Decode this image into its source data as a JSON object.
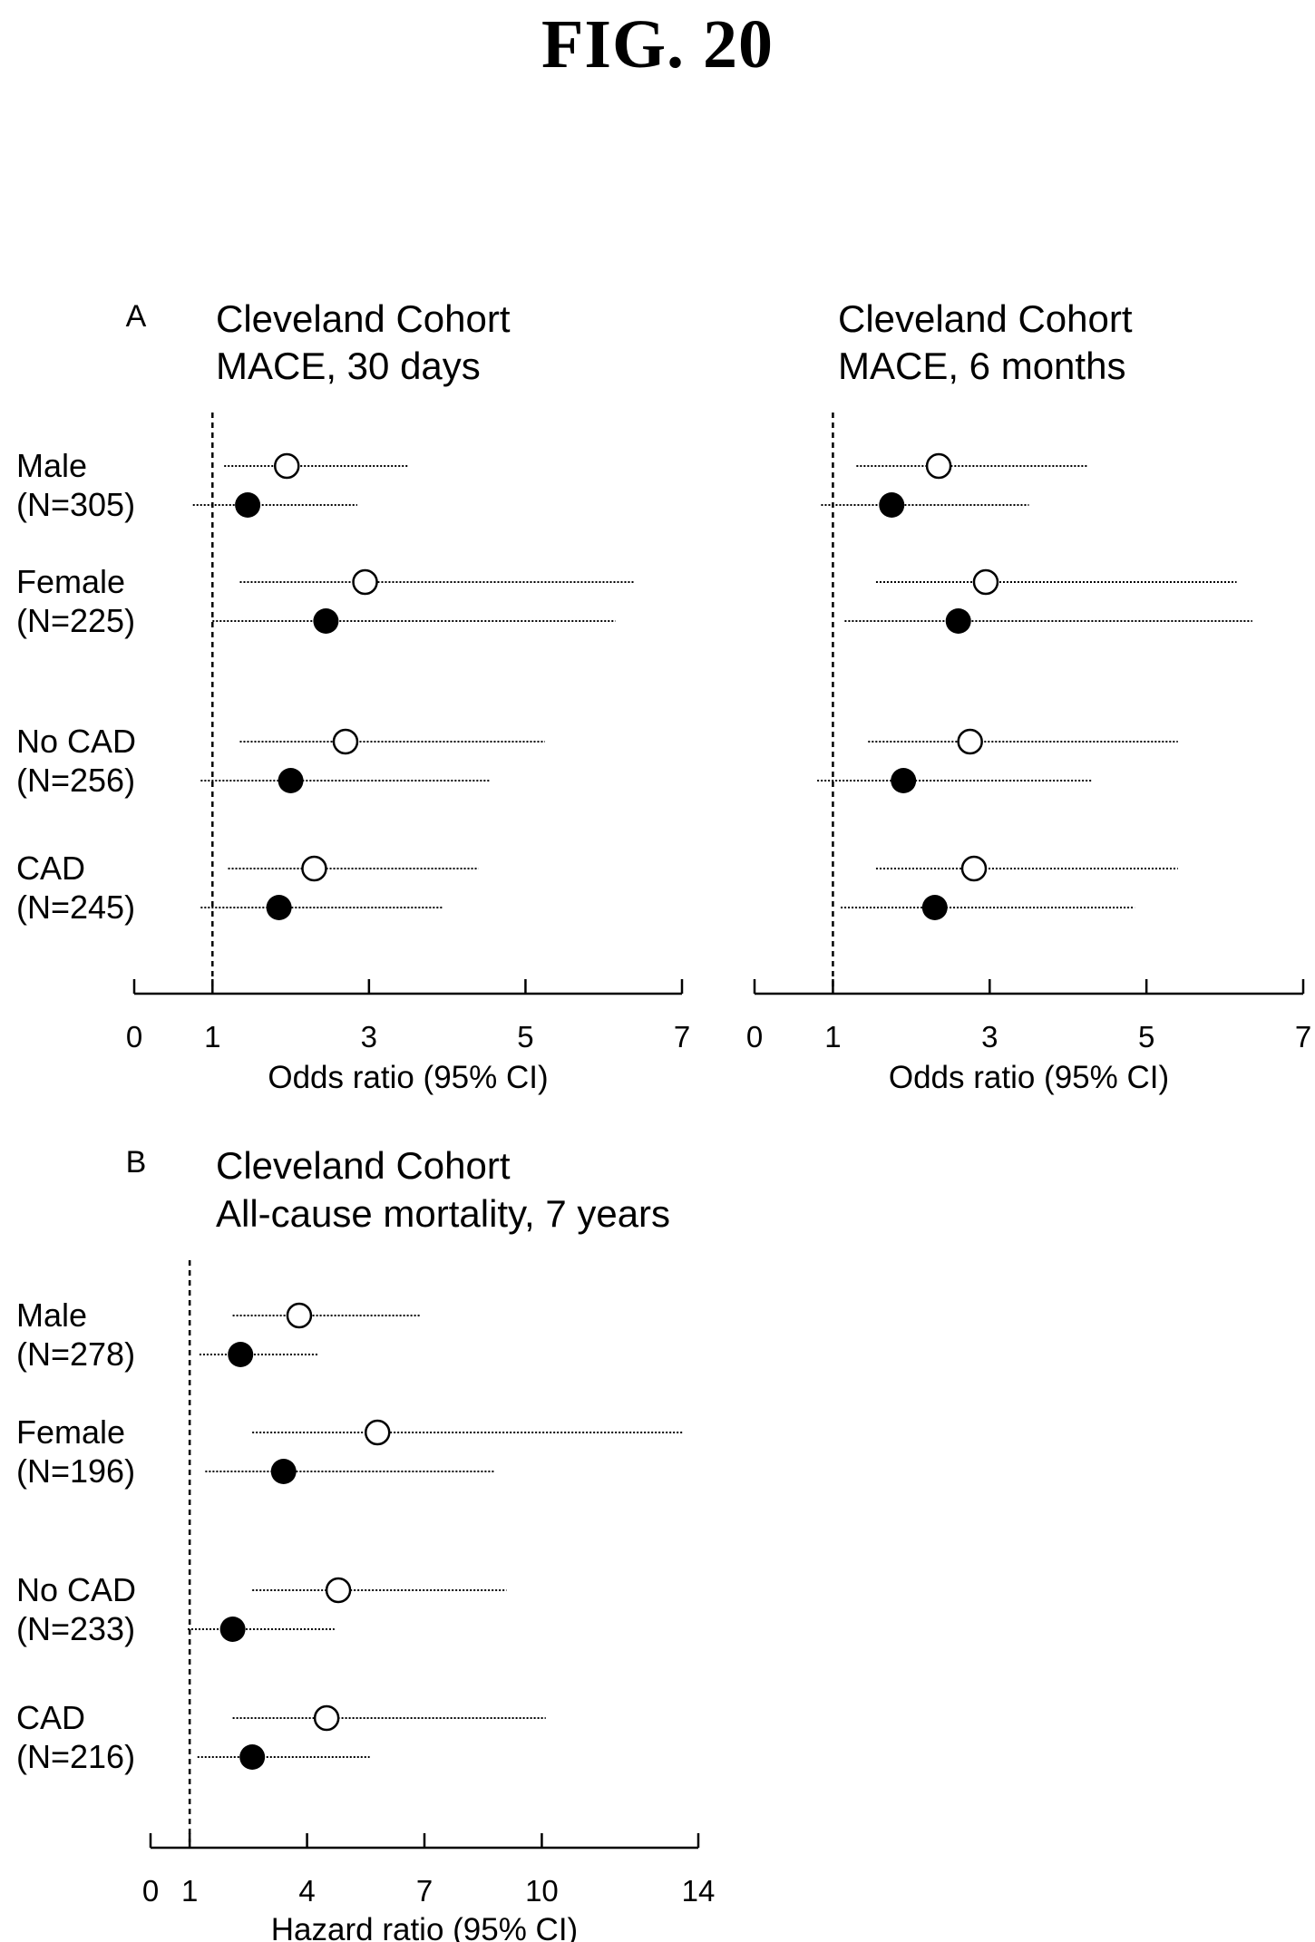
{
  "figure_title": "FIG. 20",
  "chart_data": [
    {
      "type": "forest",
      "panel_letter": "A",
      "title_lines": [
        "Cleveland Cohort",
        "MACE, 30 days"
      ],
      "xlabel": "Odds ratio (95% CI)",
      "xticks": [
        0,
        1,
        3,
        5,
        7
      ],
      "xlim": [
        0,
        7
      ],
      "reference_line": 1,
      "rows": [
        {
          "label": [
            "Male",
            "(N=305)"
          ],
          "open": {
            "est": 1.95,
            "lo": 1.15,
            "hi": 3.5
          },
          "filled": {
            "est": 1.45,
            "lo": 0.75,
            "hi": 2.85
          }
        },
        {
          "label": [
            "Female",
            "(N=225)"
          ],
          "open": {
            "est": 2.95,
            "lo": 1.35,
            "hi": 6.4
          },
          "filled": {
            "est": 2.45,
            "lo": 1.0,
            "hi": 6.15
          }
        },
        {
          "label": [
            "No CAD",
            "(N=256)"
          ],
          "open": {
            "est": 2.7,
            "lo": 1.35,
            "hi": 5.25
          },
          "filled": {
            "est": 2.0,
            "lo": 0.85,
            "hi": 4.55
          }
        },
        {
          "label": [
            "CAD",
            "(N=245)"
          ],
          "open": {
            "est": 2.3,
            "lo": 1.2,
            "hi": 4.4
          },
          "filled": {
            "est": 1.85,
            "lo": 0.85,
            "hi": 3.95
          }
        }
      ]
    },
    {
      "type": "forest",
      "panel_letter": "",
      "title_lines": [
        "Cleveland Cohort",
        "MACE, 6 months"
      ],
      "xlabel": "Odds ratio (95% CI)",
      "xticks": [
        0,
        1,
        3,
        5,
        7
      ],
      "xlim": [
        0,
        7
      ],
      "reference_line": 1,
      "rows": [
        {
          "label": [
            "Male",
            "(N=305)"
          ],
          "open": {
            "est": 2.35,
            "lo": 1.3,
            "hi": 4.25
          },
          "filled": {
            "est": 1.75,
            "lo": 0.85,
            "hi": 3.5
          }
        },
        {
          "label": [
            "Female",
            "(N=225)"
          ],
          "open": {
            "est": 2.95,
            "lo": 1.55,
            "hi": 6.15
          },
          "filled": {
            "est": 2.6,
            "lo": 1.15,
            "hi": 6.35
          }
        },
        {
          "label": [
            "No CAD",
            "(N=256)"
          ],
          "open": {
            "est": 2.75,
            "lo": 1.45,
            "hi": 5.4
          },
          "filled": {
            "est": 1.9,
            "lo": 0.8,
            "hi": 4.3
          }
        },
        {
          "label": [
            "CAD",
            "(N=245)"
          ],
          "open": {
            "est": 2.8,
            "lo": 1.55,
            "hi": 5.4
          },
          "filled": {
            "est": 2.3,
            "lo": 1.1,
            "hi": 4.85
          }
        }
      ]
    },
    {
      "type": "forest",
      "panel_letter": "B",
      "title_lines": [
        "Cleveland Cohort",
        "All-cause mortality, 7 years"
      ],
      "xlabel": "Hazard ratio (95% CI)",
      "xticks": [
        0,
        1,
        4,
        7,
        10,
        14
      ],
      "xlim": [
        0,
        14
      ],
      "reference_line": 1,
      "rows": [
        {
          "label": [
            "Male",
            "(N=278)"
          ],
          "open": {
            "est": 3.8,
            "lo": 2.1,
            "hi": 6.9
          },
          "filled": {
            "est": 2.3,
            "lo": 1.25,
            "hi": 4.3
          }
        },
        {
          "label": [
            "Female",
            "(N=196)"
          ],
          "open": {
            "est": 5.8,
            "lo": 2.6,
            "hi": 13.6
          },
          "filled": {
            "est": 3.4,
            "lo": 1.4,
            "hi": 8.8
          }
        },
        {
          "label": [
            "No CAD",
            "(N=233)"
          ],
          "open": {
            "est": 4.8,
            "lo": 2.6,
            "hi": 9.1
          },
          "filled": {
            "est": 2.1,
            "lo": 0.95,
            "hi": 4.7
          }
        },
        {
          "label": [
            "CAD",
            "(N=216)"
          ],
          "open": {
            "est": 4.5,
            "lo": 2.1,
            "hi": 10.1
          },
          "filled": {
            "est": 2.6,
            "lo": 1.2,
            "hi": 5.6
          }
        }
      ]
    }
  ]
}
